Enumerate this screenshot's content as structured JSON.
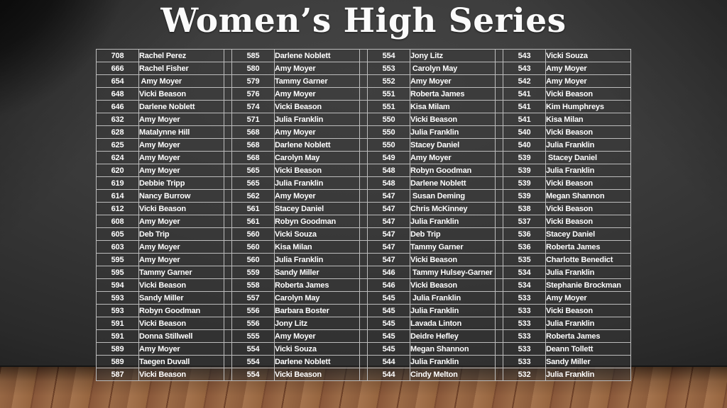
{
  "title": "Women’s High Series",
  "palette": {
    "wall": "#3a3a3a",
    "floor_wood": "#96653f",
    "table_border": "#bdbdbd",
    "text": "#ffffff"
  },
  "table": {
    "columns": [
      {
        "entries": [
          {
            "score": "708",
            "name": "Rachel Perez"
          },
          {
            "score": "666",
            "name": "Rachel Fisher"
          },
          {
            "score": "654",
            "name": " Amy Moyer"
          },
          {
            "score": "648",
            "name": "Vicki Beason"
          },
          {
            "score": "646",
            "name": "Darlene Noblett"
          },
          {
            "score": "632",
            "name": "Amy Moyer"
          },
          {
            "score": "628",
            "name": "Matalynne Hill"
          },
          {
            "score": "625",
            "name": "Amy Moyer"
          },
          {
            "score": "624",
            "name": "Amy Moyer"
          },
          {
            "score": "620",
            "name": "Amy Moyer"
          },
          {
            "score": "619",
            "name": "Debbie Tripp"
          },
          {
            "score": "614",
            "name": "Nancy Burrow"
          },
          {
            "score": "612",
            "name": "Vicki Beason"
          },
          {
            "score": "608",
            "name": "Amy Moyer"
          },
          {
            "score": "605",
            "name": "Deb Trip"
          },
          {
            "score": "603",
            "name": "Amy Moyer"
          },
          {
            "score": "595",
            "name": "Amy Moyer"
          },
          {
            "score": "595",
            "name": "Tammy Garner"
          },
          {
            "score": "594",
            "name": "Vicki Beason"
          },
          {
            "score": "593",
            "name": "Sandy Miller"
          },
          {
            "score": "593",
            "name": "Robyn Goodman"
          },
          {
            "score": "591",
            "name": "Vicki Beason"
          },
          {
            "score": "591",
            "name": "Donna Stillwell"
          },
          {
            "score": "589",
            "name": "Amy Moyer"
          },
          {
            "score": "589",
            "name": "Taegen Duvall"
          },
          {
            "score": "587",
            "name": "Vicki Beason"
          }
        ]
      },
      {
        "entries": [
          {
            "score": "585",
            "name": "Darlene Noblett"
          },
          {
            "score": "580",
            "name": "Amy Moyer"
          },
          {
            "score": "579",
            "name": "Tammy Garner"
          },
          {
            "score": "576",
            "name": "Amy Moyer"
          },
          {
            "score": "574",
            "name": "Vicki Beason"
          },
          {
            "score": "571",
            "name": "Julia Franklin"
          },
          {
            "score": "568",
            "name": "Amy Moyer"
          },
          {
            "score": "568",
            "name": "Darlene Noblett"
          },
          {
            "score": "568",
            "name": "Carolyn May"
          },
          {
            "score": "565",
            "name": "Vicki Beason"
          },
          {
            "score": "565",
            "name": "Julia Franklin"
          },
          {
            "score": "562",
            "name": "Amy Moyer"
          },
          {
            "score": "561",
            "name": "Stacey Daniel"
          },
          {
            "score": "561",
            "name": "Robyn Goodman"
          },
          {
            "score": "560",
            "name": "Vicki Souza"
          },
          {
            "score": "560",
            "name": "Kisa Milan"
          },
          {
            "score": "560",
            "name": "Julia Franklin"
          },
          {
            "score": "559",
            "name": "Sandy Miller"
          },
          {
            "score": "558",
            "name": "Roberta James"
          },
          {
            "score": "557",
            "name": "Carolyn May"
          },
          {
            "score": "556",
            "name": "Barbara Boster"
          },
          {
            "score": "556",
            "name": "Jony Litz"
          },
          {
            "score": "555",
            "name": "Amy Moyer"
          },
          {
            "score": "554",
            "name": "Vicki Souza"
          },
          {
            "score": "554",
            "name": "Darlene Noblett"
          },
          {
            "score": "554",
            "name": "Vicki Beason"
          }
        ]
      },
      {
        "entries": [
          {
            "score": "554",
            "name": "Jony Litz"
          },
          {
            "score": "553",
            "name": " Carolyn May"
          },
          {
            "score": "552",
            "name": "Amy Moyer"
          },
          {
            "score": "551",
            "name": "Roberta James"
          },
          {
            "score": "551",
            "name": "Kisa Milam"
          },
          {
            "score": "550",
            "name": "Vicki Beason"
          },
          {
            "score": "550",
            "name": "Julia Franklin"
          },
          {
            "score": "550",
            "name": "Stacey Daniel"
          },
          {
            "score": "549",
            "name": "Amy Moyer"
          },
          {
            "score": "548",
            "name": "Robyn Goodman"
          },
          {
            "score": "548",
            "name": "Darlene Noblett"
          },
          {
            "score": "547",
            "name": " Susan Deming"
          },
          {
            "score": "547",
            "name": "Chris McKinney"
          },
          {
            "score": "547",
            "name": "Julia Franklin"
          },
          {
            "score": "547",
            "name": "Deb Trip"
          },
          {
            "score": "547",
            "name": "Tammy Garner"
          },
          {
            "score": "547",
            "name": "Vicki Beason"
          },
          {
            "score": "546",
            "name": " Tammy Hulsey-Garner"
          },
          {
            "score": "546",
            "name": "Vicki Beason"
          },
          {
            "score": "545",
            "name": " Julia Franklin"
          },
          {
            "score": "545",
            "name": "Julia Franklin"
          },
          {
            "score": "545",
            "name": "Lavada Linton"
          },
          {
            "score": "545",
            "name": "Deidre Hefley"
          },
          {
            "score": "545",
            "name": "Megan Shannon"
          },
          {
            "score": "544",
            "name": "Julia Franklin"
          },
          {
            "score": "544",
            "name": "Cindy Melton"
          }
        ]
      },
      {
        "entries": [
          {
            "score": "543",
            "name": "Vicki Souza"
          },
          {
            "score": "543",
            "name": "Amy Moyer"
          },
          {
            "score": "542",
            "name": "Amy Moyer"
          },
          {
            "score": "541",
            "name": "Vicki Beason"
          },
          {
            "score": "541",
            "name": "Kim Humphreys"
          },
          {
            "score": "541",
            "name": "Kisa Milan"
          },
          {
            "score": "540",
            "name": "Vicki Beason"
          },
          {
            "score": "540",
            "name": "Julia Franklin"
          },
          {
            "score": "539",
            "name": " Stacey Daniel"
          },
          {
            "score": "539",
            "name": "Julia Franklin"
          },
          {
            "score": "539",
            "name": "Vicki Beason"
          },
          {
            "score": "539",
            "name": "Megan Shannon"
          },
          {
            "score": "538",
            "name": "Vicki Beason"
          },
          {
            "score": "537",
            "name": "Vicki Beason"
          },
          {
            "score": "536",
            "name": "Stacey Daniel"
          },
          {
            "score": "536",
            "name": "Roberta James"
          },
          {
            "score": "535",
            "name": "Charlotte Benedict"
          },
          {
            "score": "534",
            "name": "Julia Franklin"
          },
          {
            "score": "534",
            "name": "Stephanie Brockman"
          },
          {
            "score": "533",
            "name": "Amy Moyer"
          },
          {
            "score": "533",
            "name": "Vicki Beason"
          },
          {
            "score": "533",
            "name": "Julia Franklin"
          },
          {
            "score": "533",
            "name": "Roberta James"
          },
          {
            "score": "533",
            "name": "Deann Tollett"
          },
          {
            "score": "533",
            "name": "Sandy Miller"
          },
          {
            "score": "532",
            "name": "Julia Franklin"
          }
        ]
      }
    ]
  }
}
